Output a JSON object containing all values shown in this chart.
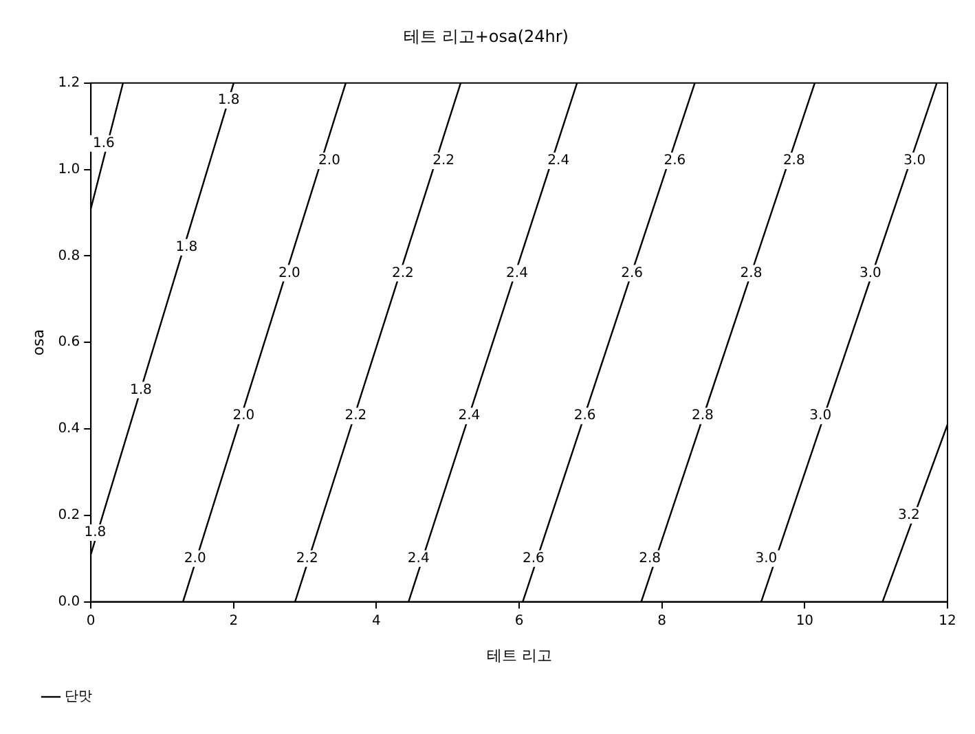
{
  "chart_data": {
    "type": "line",
    "title": "테트 리고+osa(24hr)",
    "xlabel": "테트 리고",
    "ylabel": "osa",
    "xlim": [
      0,
      12
    ],
    "xticks": [
      0,
      2,
      4,
      6,
      8,
      10,
      12
    ],
    "ylim": [
      0,
      1.2
    ],
    "yticks": [
      {
        "value": 0,
        "label": "0.0"
      },
      {
        "value": 0.2,
        "label": "0.2"
      },
      {
        "value": 0.4,
        "label": "0.4"
      },
      {
        "value": 0.6,
        "label": "0.6"
      },
      {
        "value": 0.8,
        "label": "0.8"
      },
      {
        "value": 1,
        "label": "1.0"
      },
      {
        "value": 1.2,
        "label": "1.2"
      }
    ],
    "grid": false,
    "legend": "bottom left",
    "marker": "none",
    "line_style": "solid",
    "series": [
      {
        "name": "단맛",
        "color": "#000000",
        "x": [
          0,
          0.45,
          null,
          0,
          2.0,
          null,
          1.29,
          3.57,
          null,
          2.86,
          5.18,
          null,
          4.45,
          6.81,
          null,
          6.05,
          8.46,
          null,
          7.71,
          10.14,
          null,
          9.39,
          11.85,
          null,
          11.09,
          12
        ],
        "values": [
          0.91,
          1.2,
          null,
          0.11,
          1.2,
          null,
          0,
          1.2,
          null,
          0,
          1.2,
          null,
          0,
          1.2,
          null,
          0,
          1.2,
          null,
          0,
          1.2,
          null,
          0,
          1.2,
          null,
          0,
          0.41
        ]
      }
    ],
    "annotations": [
      {
        "text": "1.6",
        "x": 0.18,
        "y": 1.06
      },
      {
        "text": "1.8",
        "x": 1.93,
        "y": 1.16
      },
      {
        "text": "2.0",
        "x": 3.34,
        "y": 1.02
      },
      {
        "text": "2.2",
        "x": 4.94,
        "y": 1.02
      },
      {
        "text": "2.4",
        "x": 6.55,
        "y": 1.02
      },
      {
        "text": "2.6",
        "x": 8.18,
        "y": 1.02
      },
      {
        "text": "2.8",
        "x": 9.85,
        "y": 1.02
      },
      {
        "text": "3.0",
        "x": 11.54,
        "y": 1.02
      },
      {
        "text": "1.8",
        "x": 1.34,
        "y": 0.82
      },
      {
        "text": "2.0",
        "x": 2.78,
        "y": 0.76
      },
      {
        "text": "2.2",
        "x": 4.37,
        "y": 0.76
      },
      {
        "text": "2.4",
        "x": 5.97,
        "y": 0.76
      },
      {
        "text": "2.6",
        "x": 7.58,
        "y": 0.76
      },
      {
        "text": "2.8",
        "x": 9.25,
        "y": 0.76
      },
      {
        "text": "3.0",
        "x": 10.92,
        "y": 0.76
      },
      {
        "text": "1.8",
        "x": 0.7,
        "y": 0.49
      },
      {
        "text": "2.0",
        "x": 2.14,
        "y": 0.43
      },
      {
        "text": "2.2",
        "x": 3.71,
        "y": 0.43
      },
      {
        "text": "2.4",
        "x": 5.3,
        "y": 0.43
      },
      {
        "text": "2.6",
        "x": 6.92,
        "y": 0.43
      },
      {
        "text": "2.8",
        "x": 8.57,
        "y": 0.43
      },
      {
        "text": "3.0",
        "x": 10.22,
        "y": 0.43
      },
      {
        "text": "1.8",
        "x": 0.06,
        "y": 0.16
      },
      {
        "text": "2.0",
        "x": 1.46,
        "y": 0.1
      },
      {
        "text": "2.2",
        "x": 3.03,
        "y": 0.1
      },
      {
        "text": "2.4",
        "x": 4.59,
        "y": 0.1
      },
      {
        "text": "2.6",
        "x": 6.2,
        "y": 0.1
      },
      {
        "text": "2.8",
        "x": 7.83,
        "y": 0.1
      },
      {
        "text": "3.0",
        "x": 9.46,
        "y": 0.1
      },
      {
        "text": "3.2",
        "x": 11.46,
        "y": 0.2
      }
    ]
  }
}
